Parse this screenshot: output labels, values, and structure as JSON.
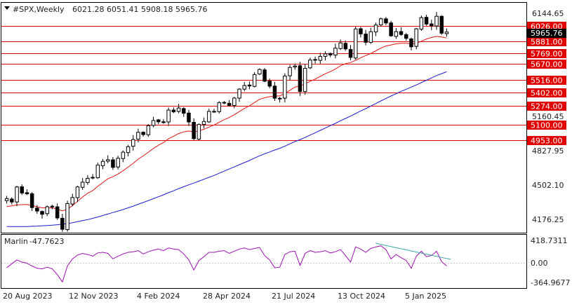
{
  "header": {
    "symbol": "#SPX,Weekly",
    "ohlc": "6021.28 6051.41 5908.18 5965.76"
  },
  "colors": {
    "background": "#ffffff",
    "frame": "#000000",
    "bull_body": "#ffffff",
    "bear_body": "#000000",
    "level_line": "#e00000",
    "level_tag": "#e00000",
    "ma_fast": "#e01515",
    "ma_slow": "#1a1ad0",
    "indicator": "#9b10b0",
    "trendline": "#3aa8a8",
    "price_tag": "#000000"
  },
  "price_axis": {
    "ticks": [
      "6144.65",
      "5160.45",
      "4827.95",
      "4502.10",
      "4176.25"
    ],
    "range": [
      4085,
      6240
    ]
  },
  "current_price": {
    "value": 5965.76,
    "label": "5965.76"
  },
  "levels": [
    {
      "value": 6026.0,
      "label": "6026.00"
    },
    {
      "value": 5881.0,
      "label": "5881.00"
    },
    {
      "value": 5769.0,
      "label": "5769.00"
    },
    {
      "value": 5670.0,
      "label": "5670.00"
    },
    {
      "value": 5516.0,
      "label": "5516.00"
    },
    {
      "value": 5402.0,
      "label": "5402.00"
    },
    {
      "value": 5274.0,
      "label": "5274.00"
    },
    {
      "value": 5100.0,
      "label": "5100.00"
    },
    {
      "value": 4953.0,
      "label": "4953.00"
    }
  ],
  "indicator": {
    "name": "Marlin",
    "value": "-47.7623",
    "ticks": [
      "418.7311",
      "0.00",
      "-364.9677"
    ]
  },
  "time_axis": {
    "labels": [
      "20 Aug 2023",
      "12 Nov 2023",
      "4 Feb 2024",
      "28 Apr 2024",
      "21 Jul 2024",
      "13 Oct 2024",
      "5 Jan 2025"
    ]
  },
  "chart_data": {
    "type": "candlestick",
    "series_close": [
      4405,
      4373,
      4514,
      4457,
      4450,
      4320,
      4288,
      4258,
      4328,
      4327,
      4224,
      4117,
      4358,
      4415,
      4514,
      4559,
      4595,
      4604,
      4719,
      4754,
      4769,
      4697,
      4783,
      4840,
      4891,
      4958,
      5026,
      5005,
      5088,
      5137,
      5124,
      5117,
      5234,
      5218,
      5254,
      5204,
      5123,
      4967,
      5100,
      5128,
      5222,
      5222,
      5303,
      5304,
      5278,
      5347,
      5431,
      5464,
      5460,
      5568,
      5615,
      5505,
      5459,
      5346,
      5344,
      5554,
      5634,
      5648,
      5408,
      5626,
      5703,
      5702,
      5738,
      5762,
      5751,
      5815,
      5864,
      5808,
      5728,
      5995,
      5949,
      5870,
      5969,
      6032,
      6090,
      6051,
      5930,
      5970,
      5943,
      5907,
      5827,
      5996,
      6101,
      6041,
      6025,
      6114,
      5955,
      5966
    ],
    "ma_fast": [
      4330,
      4337,
      4345,
      4348,
      4350,
      4340,
      4328,
      4318,
      4318,
      4318,
      4305,
      4290,
      4305,
      4340,
      4380,
      4420,
      4455,
      4480,
      4520,
      4555,
      4590,
      4610,
      4635,
      4665,
      4700,
      4735,
      4775,
      4805,
      4840,
      4875,
      4905,
      4930,
      4965,
      4990,
      5015,
      5030,
      5038,
      5030,
      5040,
      5055,
      5075,
      5095,
      5120,
      5145,
      5165,
      5190,
      5220,
      5250,
      5275,
      5305,
      5335,
      5350,
      5360,
      5365,
      5368,
      5390,
      5420,
      5450,
      5460,
      5480,
      5505,
      5525,
      5550,
      5575,
      5595,
      5620,
      5650,
      5670,
      5680,
      5700,
      5725,
      5745,
      5765,
      5790,
      5815,
      5835,
      5845,
      5855,
      5860,
      5860,
      5853,
      5860,
      5880,
      5900,
      5915,
      5925,
      5920,
      5910
    ],
    "ma_slow": [
      4142,
      4142,
      4142,
      4142,
      4142,
      4145,
      4147,
      4150,
      4152,
      4155,
      4160,
      4165,
      4170,
      4178,
      4188,
      4198,
      4208,
      4220,
      4232,
      4246,
      4260,
      4274,
      4288,
      4302,
      4318,
      4334,
      4352,
      4368,
      4386,
      4404,
      4422,
      4440,
      4460,
      4478,
      4498,
      4516,
      4534,
      4550,
      4568,
      4586,
      4604,
      4622,
      4642,
      4662,
      4682,
      4702,
      4722,
      4742,
      4762,
      4784,
      4806,
      4824,
      4842,
      4860,
      4876,
      4896,
      4918,
      4940,
      4958,
      4978,
      5000,
      5022,
      5044,
      5066,
      5088,
      5110,
      5134,
      5156,
      5178,
      5202,
      5226,
      5248,
      5272,
      5296,
      5320,
      5344,
      5366,
      5388,
      5410,
      5430,
      5450,
      5470,
      5492,
      5514,
      5536,
      5558,
      5576,
      5594
    ],
    "marlin": [
      -80,
      -10,
      60,
      20,
      0,
      -50,
      -90,
      -100,
      -70,
      -100,
      -200,
      -330,
      -50,
      80,
      150,
      180,
      160,
      130,
      190,
      200,
      180,
      80,
      130,
      170,
      200,
      210,
      230,
      170,
      210,
      240,
      260,
      230,
      280,
      260,
      250,
      170,
      60,
      -120,
      50,
      120,
      200,
      200,
      220,
      230,
      180,
      220,
      260,
      280,
      250,
      270,
      290,
      140,
      60,
      -80,
      -70,
      160,
      210,
      220,
      -40,
      180,
      230,
      200,
      210,
      230,
      190,
      210,
      250,
      140,
      20,
      300,
      260,
      200,
      270,
      300,
      320,
      250,
      80,
      160,
      100,
      50,
      -90,
      130,
      220,
      120,
      140,
      220,
      30,
      -48
    ]
  }
}
